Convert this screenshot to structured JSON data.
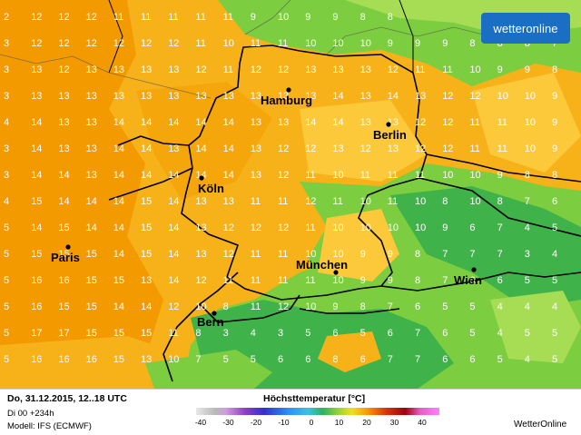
{
  "logo": {
    "text": "wetteronline"
  },
  "cities": [
    {
      "name": "Hamburg",
      "id": "hamburg"
    },
    {
      "name": "Berlin",
      "id": "berlin"
    },
    {
      "name": "Köln",
      "id": "koeln"
    },
    {
      "name": "Paris",
      "id": "paris"
    },
    {
      "name": "München",
      "id": "muenchen"
    },
    {
      "name": "Wien",
      "id": "wien"
    },
    {
      "name": "Bern",
      "id": "bern"
    }
  ],
  "legend": {
    "date": "Do, 31.12.2015, 12..18 UTC",
    "run": "Di 00 +234h",
    "model": "Modell: IFS (ECMWF)",
    "title": "Höchsttemperatur [°C]",
    "credit": "WetterOnline",
    "ticks": [
      "-40",
      "-30",
      "-20",
      "-10",
      "0",
      "10",
      "20",
      "30",
      "40"
    ]
  },
  "colors": {
    "orange_dark": "#f29a00",
    "orange": "#f7b21a",
    "orange_light": "#fcc93a",
    "green": "#7ccd3f",
    "green_dark": "#3fb34a",
    "green_light": "#a7dd55",
    "border": "#000000",
    "logo_bg": "#1a6fc4"
  },
  "grid_values": [
    [
      "2",
      "12",
      "12",
      "12",
      "11",
      "11",
      "11",
      "11",
      "11",
      "9",
      "10",
      "9",
      "9",
      "8",
      "8",
      "",
      "",
      "",
      "",
      "",
      ""
    ],
    [
      "3",
      "12",
      "12",
      "12",
      "12",
      "12",
      "12",
      "11",
      "10",
      "11",
      "11",
      "10",
      "10",
      "10",
      "9",
      "9",
      "9",
      "8",
      "8",
      "8",
      "7"
    ],
    [
      "3",
      "13",
      "12",
      "13",
      "13",
      "13",
      "13",
      "12",
      "11",
      "12",
      "12",
      "13",
      "13",
      "13",
      "12",
      "11",
      "11",
      "10",
      "9",
      "9",
      "8"
    ],
    [
      "3",
      "13",
      "13",
      "13",
      "13",
      "13",
      "13",
      "13",
      "13",
      "13",
      "13",
      "13",
      "14",
      "13",
      "14",
      "13",
      "12",
      "12",
      "10",
      "10",
      "9"
    ],
    [
      "4",
      "14",
      "13",
      "13",
      "14",
      "14",
      "14",
      "14",
      "14",
      "13",
      "13",
      "14",
      "14",
      "13",
      "13",
      "12",
      "12",
      "11",
      "11",
      "10",
      "9"
    ],
    [
      "3",
      "14",
      "13",
      "13",
      "14",
      "14",
      "13",
      "14",
      "14",
      "13",
      "12",
      "12",
      "13",
      "12",
      "13",
      "12",
      "12",
      "11",
      "11",
      "10",
      "9"
    ],
    [
      "3",
      "14",
      "14",
      "13",
      "14",
      "14",
      "14",
      "14",
      "14",
      "13",
      "12",
      "11",
      "10",
      "11",
      "11",
      "11",
      "10",
      "10",
      "9",
      "8",
      "8"
    ],
    [
      "4",
      "15",
      "14",
      "14",
      "14",
      "15",
      "14",
      "13",
      "13",
      "11",
      "11",
      "12",
      "11",
      "10",
      "11",
      "10",
      "8",
      "10",
      "8",
      "7",
      "6"
    ],
    [
      "5",
      "14",
      "15",
      "14",
      "14",
      "15",
      "14",
      "13",
      "12",
      "12",
      "12",
      "11",
      "10",
      "10",
      "10",
      "10",
      "9",
      "6",
      "7",
      "4",
      "5"
    ],
    [
      "5",
      "15",
      "15",
      "15",
      "14",
      "15",
      "14",
      "13",
      "12",
      "11",
      "11",
      "10",
      "10",
      "9",
      "9",
      "8",
      "7",
      "7",
      "7",
      "3",
      "4"
    ],
    [
      "5",
      "16",
      "16",
      "15",
      "15",
      "13",
      "14",
      "12",
      "11",
      "11",
      "11",
      "11",
      "10",
      "9",
      "9",
      "8",
      "7",
      "6",
      "6",
      "5",
      "5"
    ],
    [
      "5",
      "16",
      "15",
      "15",
      "14",
      "14",
      "12",
      "10",
      "8",
      "11",
      "12",
      "10",
      "9",
      "8",
      "7",
      "6",
      "5",
      "5",
      "4",
      "4",
      "4"
    ],
    [
      "5",
      "17",
      "17",
      "15",
      "15",
      "15",
      "11",
      "8",
      "3",
      "4",
      "3",
      "5",
      "6",
      "5",
      "6",
      "7",
      "6",
      "5",
      "4",
      "5",
      "5"
    ],
    [
      "5",
      "16",
      "16",
      "16",
      "15",
      "13",
      "10",
      "7",
      "5",
      "5",
      "6",
      "6",
      "8",
      "6",
      "7",
      "7",
      "6",
      "6",
      "5",
      "4",
      "5"
    ],
    [
      "",
      "",
      "",
      "",
      "",
      "",
      "",
      "",
      "",
      "",
      "",
      "",
      "",
      "",
      "",
      "",
      "",
      "",
      "",
      "",
      ""
    ]
  ]
}
